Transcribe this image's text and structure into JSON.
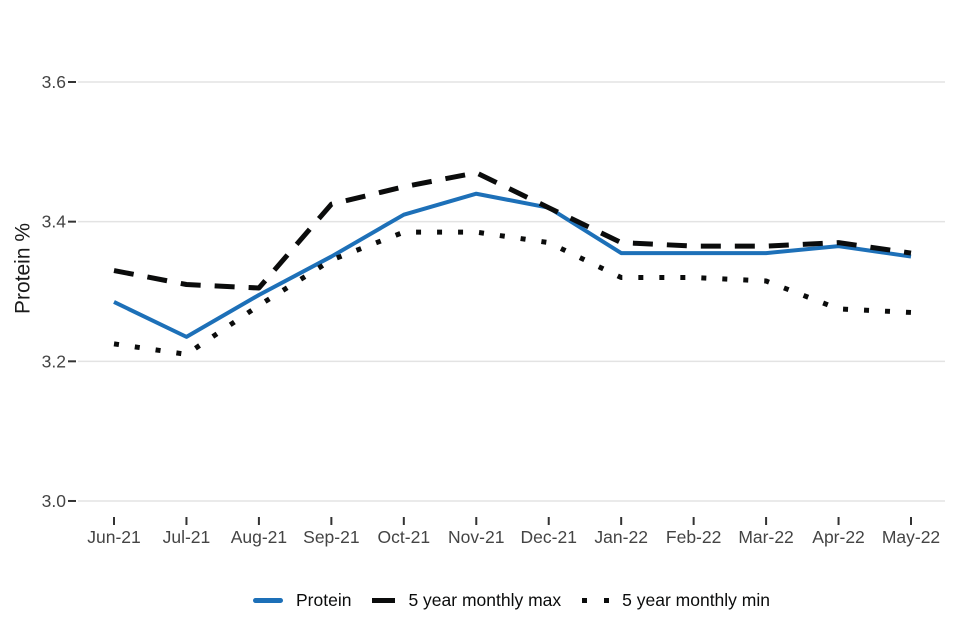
{
  "chart_data": {
    "type": "line",
    "title": "",
    "xlabel": "",
    "ylabel": "Protein %",
    "categories": [
      "Jun-21",
      "Jul-21",
      "Aug-21",
      "Sep-21",
      "Oct-21",
      "Nov-21",
      "Dec-21",
      "Jan-22",
      "Feb-22",
      "Mar-22",
      "Apr-22",
      "May-22"
    ],
    "yticks": [
      3.0,
      3.2,
      3.4,
      3.6
    ],
    "ytick_labels": [
      "3.0",
      "3.2",
      "3.4",
      "3.6"
    ],
    "ylim": [
      2.96,
      3.64
    ],
    "grid": "horizontal-only",
    "legend_position": "bottom-center",
    "series": [
      {
        "name": "Protein",
        "color": "#1d70b8",
        "style": "solid",
        "values": [
          3.285,
          3.235,
          3.295,
          3.35,
          3.41,
          3.44,
          3.42,
          3.355,
          3.355,
          3.355,
          3.365,
          3.35
        ]
      },
      {
        "name": "5 year monthly max",
        "color": "#0b0c0c",
        "style": "dashed",
        "values": [
          3.33,
          3.31,
          3.305,
          3.425,
          3.45,
          3.47,
          3.42,
          3.37,
          3.365,
          3.365,
          3.37,
          3.355
        ]
      },
      {
        "name": "5 year monthly min",
        "color": "#0b0c0c",
        "style": "dotted",
        "values": [
          3.225,
          3.21,
          3.28,
          3.345,
          3.385,
          3.385,
          3.37,
          3.32,
          3.32,
          3.315,
          3.275,
          3.27
        ]
      }
    ]
  },
  "colors": {
    "accent_blue": "#1d70b8",
    "line_black": "#0b0c0c",
    "gridline": "#e3e3e3",
    "tick_mark": "#333333",
    "tick_label": "#444444",
    "background": "#ffffff"
  }
}
